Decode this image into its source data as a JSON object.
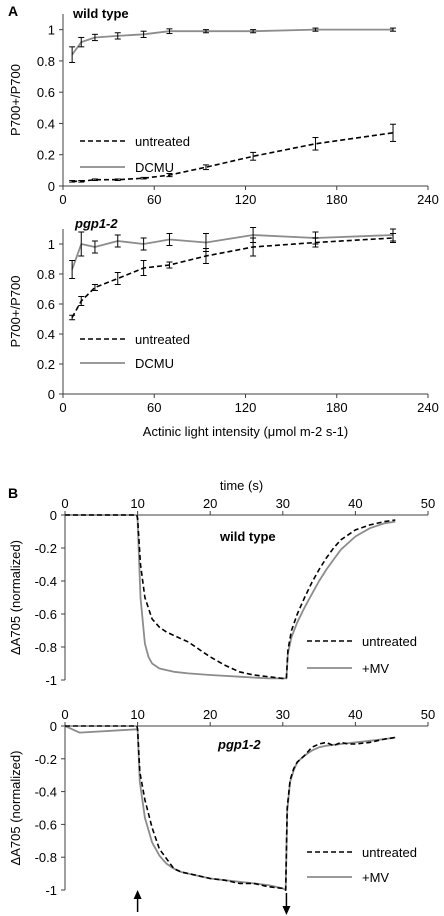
{
  "figure": {
    "panel_a_label": "A",
    "panel_b_label": "B"
  },
  "colors": {
    "untreated": "#000000",
    "treated": "#8c8c8c",
    "axis": "#404040"
  },
  "chart_data": [
    {
      "type": "line",
      "title": "wild type",
      "xlabel": "",
      "ylabel": "P700+/P700",
      "xlim": [
        0,
        240
      ],
      "ylim": [
        0,
        1.1
      ],
      "xticks": [
        "0",
        "60",
        "120",
        "180",
        "240"
      ],
      "yticks": [
        "0",
        "0.2",
        "0.4",
        "0.6",
        "0.8",
        "1"
      ],
      "x": [
        6,
        12,
        21,
        36,
        53,
        70,
        94,
        125,
        166,
        217
      ],
      "series": [
        {
          "name": "untreated",
          "style": "dashed",
          "values": [
            0.03,
            0.03,
            0.04,
            0.04,
            0.05,
            0.07,
            0.12,
            0.19,
            0.27,
            0.34
          ],
          "errors": [
            0.005,
            0.005,
            0.005,
            0.005,
            0.005,
            0.01,
            0.015,
            0.025,
            0.04,
            0.055
          ]
        },
        {
          "name": "DCMU",
          "style": "solid",
          "values": [
            0.84,
            0.92,
            0.95,
            0.96,
            0.97,
            0.99,
            0.99,
            0.99,
            1.0,
            1.0
          ],
          "errors": [
            0.05,
            0.03,
            0.02,
            0.02,
            0.02,
            0.015,
            0.01,
            0.01,
            0.01,
            0.01
          ]
        }
      ],
      "legend": "center-left"
    },
    {
      "type": "line",
      "title": "pgp1-2",
      "xlabel": "Actinic light intensity (μmol m-2 s-1)",
      "ylabel": "P700+/P700",
      "xlim": [
        0,
        240
      ],
      "ylim": [
        0,
        1.1
      ],
      "xticks": [
        "0",
        "60",
        "120",
        "180",
        "240"
      ],
      "yticks": [
        "0",
        "0.2",
        "0.4",
        "0.6",
        "0.8",
        "1"
      ],
      "x": [
        6,
        12,
        21,
        36,
        53,
        70,
        94,
        125,
        166,
        217
      ],
      "series": [
        {
          "name": "untreated",
          "style": "dashed",
          "values": [
            0.51,
            0.62,
            0.71,
            0.77,
            0.84,
            0.86,
            0.92,
            0.98,
            1.01,
            1.04
          ],
          "errors": [
            0.015,
            0.03,
            0.02,
            0.04,
            0.05,
            0.02,
            0.05,
            0.06,
            0.03,
            0.03
          ]
        },
        {
          "name": "DCMU",
          "style": "solid",
          "values": [
            0.83,
            1.0,
            0.98,
            1.02,
            1.0,
            1.03,
            1.01,
            1.06,
            1.04,
            1.06
          ],
          "errors": [
            0.06,
            0.08,
            0.04,
            0.04,
            0.04,
            0.04,
            0.06,
            0.05,
            0.04,
            0.04
          ]
        }
      ],
      "legend": "center-left"
    },
    {
      "type": "line",
      "title": "wild type",
      "xlabel": "time (s)",
      "ylabel": "ΔA705 (normalized)",
      "xlim": [
        0,
        50
      ],
      "ylim": [
        -1,
        0
      ],
      "xticks": [
        "0",
        "10",
        "20",
        "30",
        "40",
        "50"
      ],
      "yticks": [
        "0",
        "-0.2",
        "-0.4",
        "-0.6",
        "-0.8",
        "-1"
      ],
      "series": [
        {
          "name": "untreated",
          "style": "dashed",
          "x": [
            0,
            9.9,
            10.0,
            10.4,
            11,
            12,
            13,
            14,
            15,
            16,
            17,
            18,
            19,
            20,
            22,
            24,
            26,
            28,
            30,
            30.5,
            30.7,
            31.2,
            32,
            33,
            34,
            35,
            36,
            37,
            38,
            40,
            42,
            44,
            45.5
          ],
          "values": [
            0,
            0,
            -0.02,
            -0.3,
            -0.5,
            -0.63,
            -0.68,
            -0.71,
            -0.73,
            -0.75,
            -0.77,
            -0.8,
            -0.83,
            -0.86,
            -0.91,
            -0.95,
            -0.97,
            -0.98,
            -0.99,
            -0.99,
            -0.82,
            -0.7,
            -0.6,
            -0.5,
            -0.41,
            -0.33,
            -0.26,
            -0.2,
            -0.15,
            -0.09,
            -0.06,
            -0.04,
            -0.03
          ]
        },
        {
          "name": "+MV",
          "style": "solid",
          "x": [
            0,
            9.9,
            10.0,
            10.4,
            11,
            11.5,
            12,
            13,
            14,
            15,
            17,
            20,
            24,
            28,
            30,
            30.5,
            30.7,
            31.2,
            32,
            33,
            34,
            35,
            36,
            37,
            38,
            40,
            42,
            44,
            45.5
          ],
          "values": [
            0,
            0,
            -0.03,
            -0.5,
            -0.78,
            -0.86,
            -0.9,
            -0.93,
            -0.94,
            -0.95,
            -0.96,
            -0.97,
            -0.98,
            -0.99,
            -0.99,
            -0.99,
            -0.84,
            -0.74,
            -0.65,
            -0.56,
            -0.48,
            -0.4,
            -0.33,
            -0.27,
            -0.21,
            -0.13,
            -0.08,
            -0.05,
            -0.04
          ]
        }
      ],
      "legend": "bottom-right"
    },
    {
      "type": "line",
      "title": "pgp1-2",
      "xlabel": "",
      "ylabel": "ΔA705 (normalized)",
      "xlim": [
        0,
        50
      ],
      "ylim": [
        -1,
        0
      ],
      "xticks": [
        "0",
        "10",
        "20",
        "30",
        "40",
        "50"
      ],
      "yticks": [
        "0",
        "-0.2",
        "-0.4",
        "-0.6",
        "-0.8",
        "-1"
      ],
      "series": [
        {
          "name": "untreated",
          "style": "dashed",
          "x": [
            0,
            9.9,
            10.0,
            10.3,
            11,
            12,
            13,
            14,
            15,
            16,
            17,
            18,
            20,
            22,
            24,
            26,
            28,
            30,
            30.4,
            30.6,
            31,
            31.5,
            32,
            33,
            34,
            35,
            36,
            37,
            38,
            39,
            40,
            42,
            44,
            45.5
          ],
          "values": [
            0,
            0,
            -0.02,
            -0.28,
            -0.45,
            -0.62,
            -0.75,
            -0.81,
            -0.87,
            -0.89,
            -0.9,
            -0.91,
            -0.93,
            -0.94,
            -0.96,
            -0.96,
            -0.98,
            -0.99,
            -1.0,
            -0.5,
            -0.33,
            -0.26,
            -0.22,
            -0.18,
            -0.13,
            -0.11,
            -0.1,
            -0.12,
            -0.1,
            -0.11,
            -0.11,
            -0.1,
            -0.08,
            -0.07
          ]
        },
        {
          "name": "+MV",
          "style": "solid",
          "x": [
            0,
            2,
            9.9,
            10.0,
            10.3,
            11,
            12,
            13,
            14,
            15,
            16,
            18,
            20,
            22,
            24,
            26,
            28,
            30,
            30.4,
            30.6,
            31,
            31.5,
            32,
            33,
            34,
            35,
            36,
            38,
            40,
            42,
            44,
            45.5
          ],
          "values": [
            0,
            -0.04,
            -0.02,
            -0.02,
            -0.34,
            -0.56,
            -0.71,
            -0.79,
            -0.84,
            -0.87,
            -0.89,
            -0.91,
            -0.93,
            -0.94,
            -0.95,
            -0.96,
            -0.97,
            -0.99,
            -1.0,
            -0.52,
            -0.34,
            -0.27,
            -0.22,
            -0.18,
            -0.15,
            -0.13,
            -0.12,
            -0.11,
            -0.1,
            -0.09,
            -0.08,
            -0.07
          ]
        }
      ],
      "legend": "bottom-right"
    }
  ]
}
